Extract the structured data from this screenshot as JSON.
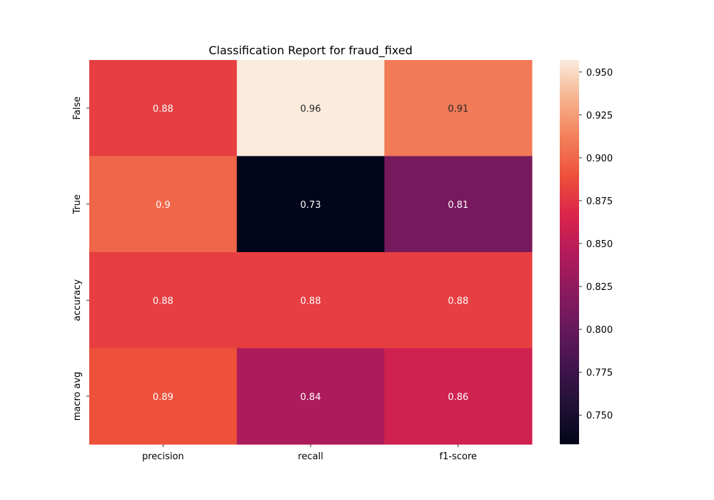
{
  "chart_data": {
    "type": "heatmap",
    "title": "Classification Report for fraud_fixed",
    "xlabel": "",
    "ylabel": "",
    "columns": [
      "precision",
      "recall",
      "f1-score"
    ],
    "rows": [
      "False",
      "True",
      "accuracy",
      "macro avg"
    ],
    "values": [
      [
        0.88,
        0.96,
        0.91
      ],
      [
        0.9,
        0.73,
        0.81
      ],
      [
        0.88,
        0.88,
        0.88
      ],
      [
        0.89,
        0.84,
        0.86
      ]
    ],
    "colorbar": {
      "range": [
        0.733,
        0.957
      ],
      "ticks": [
        "0.750",
        "0.775",
        "0.800",
        "0.825",
        "0.850",
        "0.875",
        "0.900",
        "0.925",
        "0.950"
      ],
      "colormap": "rocket"
    },
    "colors": {
      "low": "#03051a",
      "high": "#faebdd"
    }
  }
}
